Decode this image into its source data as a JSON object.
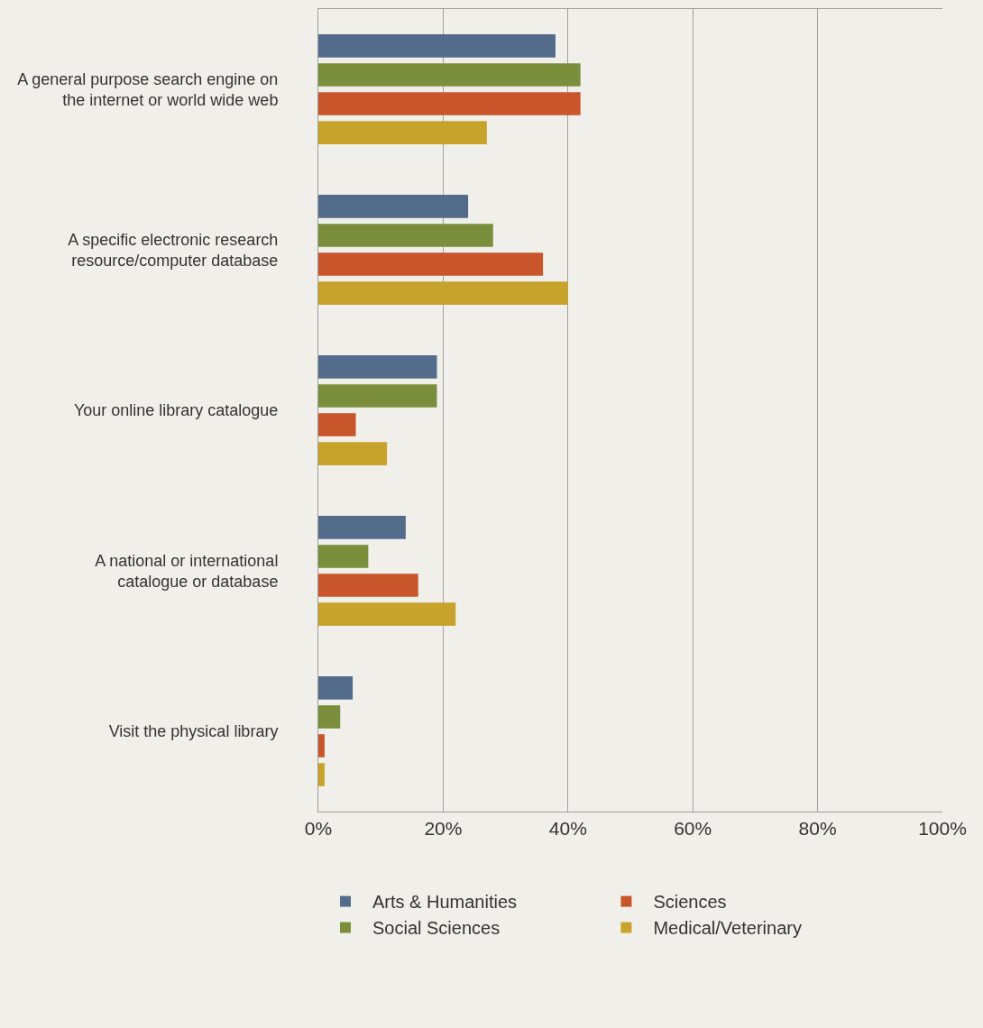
{
  "chart_data": {
    "type": "bar",
    "orientation": "horizontal",
    "categories": [
      "A general purpose search engine on the internet or world wide web",
      "A specific electronic research resource/computer database",
      "Your online library catalogue",
      "A national or international catalogue or database",
      "Visit the physical library"
    ],
    "series": [
      {
        "name": "Arts & Humanities",
        "color": "#536c8b",
        "values": [
          38,
          24,
          19,
          14,
          5.5
        ]
      },
      {
        "name": "Social Sciences",
        "color": "#7a8e3c",
        "values": [
          42,
          28,
          19,
          8,
          3.5
        ]
      },
      {
        "name": "Sciences",
        "color": "#c9552a",
        "values": [
          42,
          36,
          6,
          16,
          1
        ]
      },
      {
        "name": "Medical/Veterinary",
        "color": "#c8a32c",
        "values": [
          27,
          40,
          11,
          22,
          1
        ]
      }
    ],
    "xlim": [
      0,
      100
    ],
    "xticks": [
      {
        "value": 0,
        "label": "0%"
      },
      {
        "value": 20,
        "label": "20%"
      },
      {
        "value": 40,
        "label": "40%"
      },
      {
        "value": 60,
        "label": "60%"
      },
      {
        "value": 80,
        "label": "80%"
      },
      {
        "value": 100,
        "label": "100%"
      }
    ],
    "grid": "x",
    "legend": "bottom"
  }
}
